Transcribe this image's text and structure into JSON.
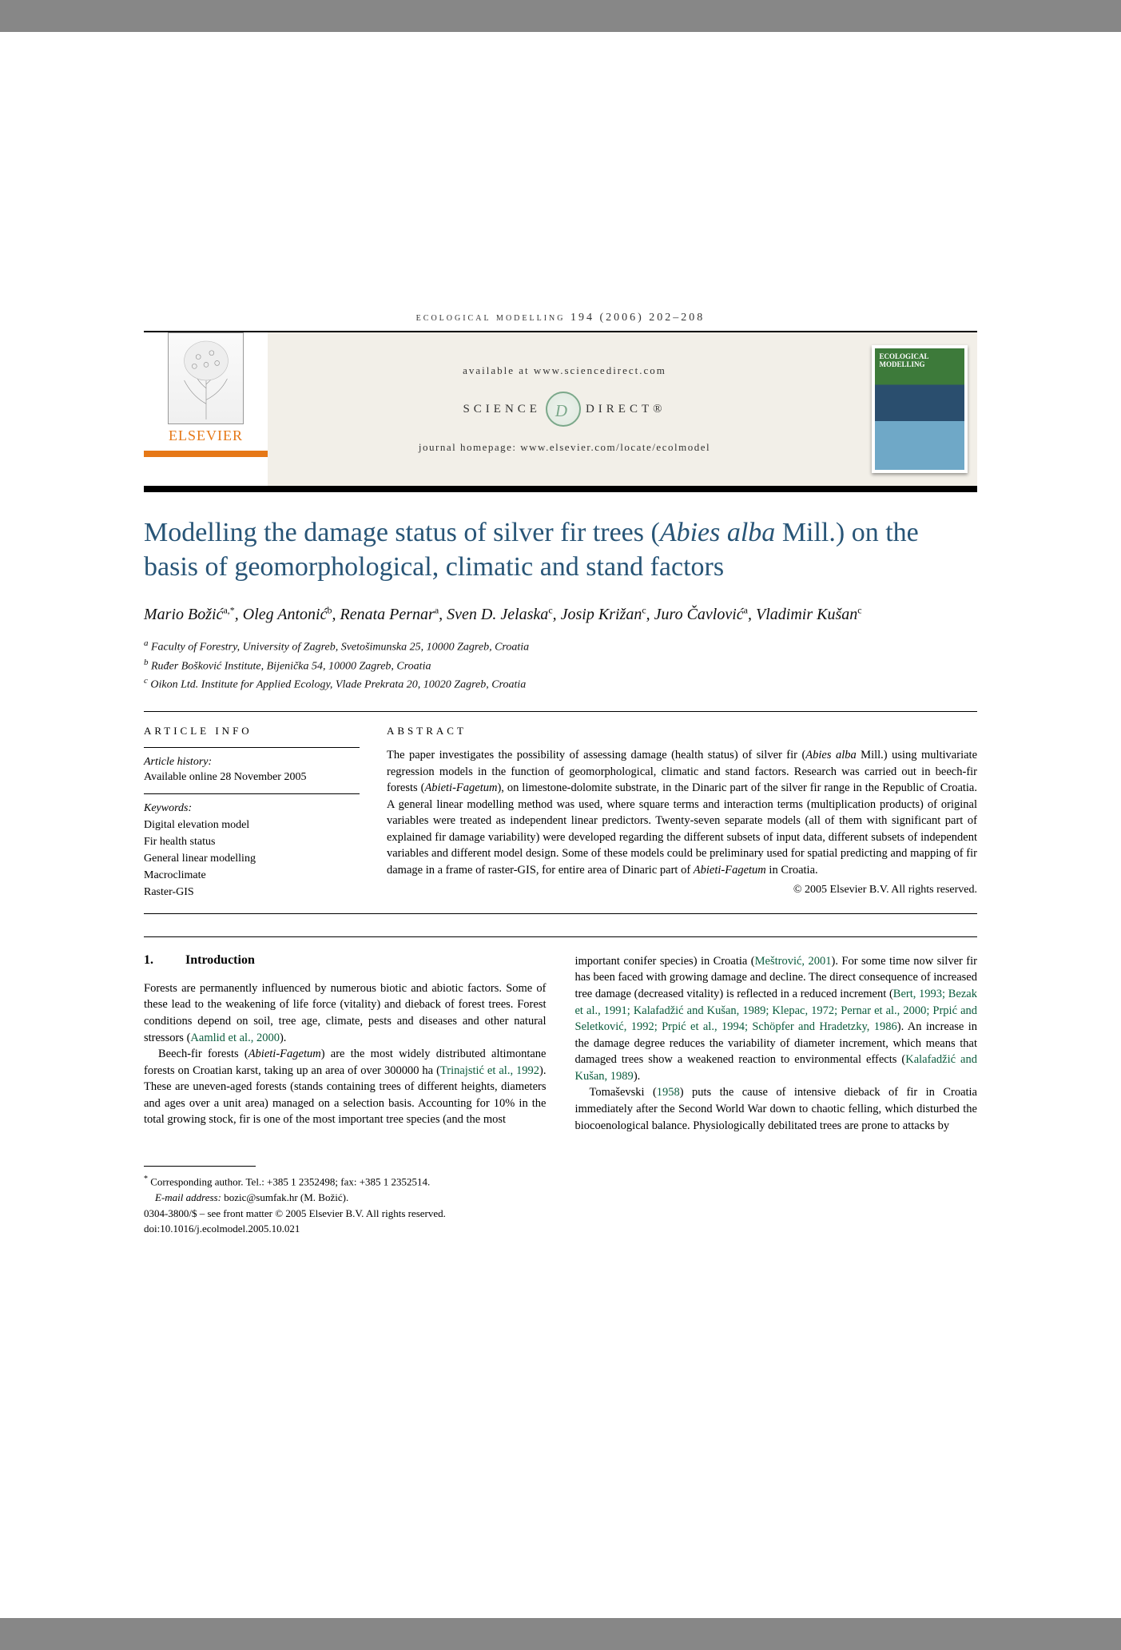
{
  "runningHeader": "ecological modelling 194 (2006) 202–208",
  "banner": {
    "available": "available at www.sciencedirect.com",
    "sd_left": "SCIENCE",
    "sd_right": "DIRECT®",
    "homepage_label": "journal homepage: www.elsevier.com/locate/ecolmodel",
    "elsevier": "ELSEVIER",
    "cover_title": "ECOLOGICAL MODELLING"
  },
  "title_html": "Modelling the damage status of silver fir trees (<em>Abies alba</em> Mill.) on the basis of geomorphological, climatic and stand factors",
  "authors_html": "Mario Božić<sup>a,*</sup>, Oleg Antonić<sup>b</sup>, Renata Pernar<sup>a</sup>, Sven D. Jelaska<sup>c</sup>, Josip Križan<sup>c</sup>, Juro Čavlović<sup>a</sup>, Vladimir Kušan<sup>c</sup>",
  "affiliations": {
    "a": "Faculty of Forestry, University of Zagreb, Svetošimunska 25, 10000 Zagreb, Croatia",
    "b": "Ruđer Bošković Institute, Bijenička 54, 10000 Zagreb, Croatia",
    "c": "Oikon Ltd. Institute for Applied Ecology, Vlade Prekrata 20, 10020 Zagreb, Croatia"
  },
  "articleInfo": {
    "head": "ARTICLE INFO",
    "history_label": "Article history:",
    "history_text": "Available online 28 November 2005",
    "keywords_label": "Keywords:",
    "keywords": [
      "Digital elevation model",
      "Fir health status",
      "General linear modelling",
      "Macroclimate",
      "Raster-GIS"
    ]
  },
  "abstract": {
    "head": "ABSTRACT",
    "body": "The paper investigates the possibility of assessing damage (health status) of silver fir (Abies alba Mill.) using multivariate regression models in the function of geomorphological, climatic and stand factors. Research was carried out in beech-fir forests (Abieti-Fagetum), on limestone-dolomite substrate, in the Dinaric part of the silver fir range in the Republic of Croatia. A general linear modelling method was used, where square terms and interaction terms (multiplication products) of original variables were treated as independent linear predictors. Twenty-seven separate models (all of them with significant part of explained fir damage variability) were developed regarding the different subsets of input data, different subsets of independent variables and different model design. Some of these models could be preliminary used for spatial predicting and mapping of fir damage in a frame of raster-GIS, for entire area of Dinaric part of Abieti-Fagetum in Croatia.",
    "copyright": "© 2005 Elsevier B.V. All rights reserved."
  },
  "section1": {
    "num": "1.",
    "title": "Introduction"
  },
  "body": {
    "col1": {
      "p1": "Forests are permanently influenced by numerous biotic and abiotic factors. Some of these lead to the weakening of life force (vitality) and dieback of forest trees. Forest conditions depend on soil, tree age, climate, pests and diseases and other natural stressors (Aamlid et al., 2000).",
      "p2": "Beech-fir forests (Abieti-Fagetum) are the most widely distributed altimontane forests on Croatian karst, taking up an area of over 300000 ha (Trinajstić et al., 1992). These are uneven-aged forests (stands containing trees of different heights, diameters and ages over a unit area) managed on a selection basis. Accounting for 10% in the total growing stock, fir is one of the most important tree species (and the most"
    },
    "col2": {
      "p1": "important conifer species) in Croatia (Meštrović, 2001). For some time now silver fir has been faced with growing damage and decline. The direct consequence of increased tree damage (decreased vitality) is reflected in a reduced increment (Bert, 1993; Bezak et al., 1991; Kalafadžić and Kušan, 1989; Klepac, 1972; Pernar et al., 2000; Prpić and Seletković, 1992; Prpić et al., 1994; Schöpfer and Hradetzky, 1986). An increase in the damage degree reduces the variability of diameter increment, which means that damaged trees show a weakened reaction to environmental effects (Kalafadžić and Kušan, 1989).",
      "p2": "Tomaševski (1958) puts the cause of intensive dieback of fir in Croatia immediately after the Second World War down to chaotic felling, which disturbed the biocoenological balance. Physiologically debilitated trees are prone to attacks by"
    }
  },
  "footnotes": {
    "corr": "Corresponding author. Tel.: +385 1 2352498; fax: +385 1 2352514.",
    "email_label": "E-mail address:",
    "email": "bozic@sumfak.hr (M. Božić).",
    "front_matter": "0304-3800/$ – see front matter © 2005 Elsevier B.V. All rights reserved.",
    "doi": "doi:10.1016/j.ecolmodel.2005.10.021"
  },
  "colors": {
    "title": "#285577",
    "elsevier_orange": "#e67817",
    "ref_green": "#0a5b3c"
  }
}
